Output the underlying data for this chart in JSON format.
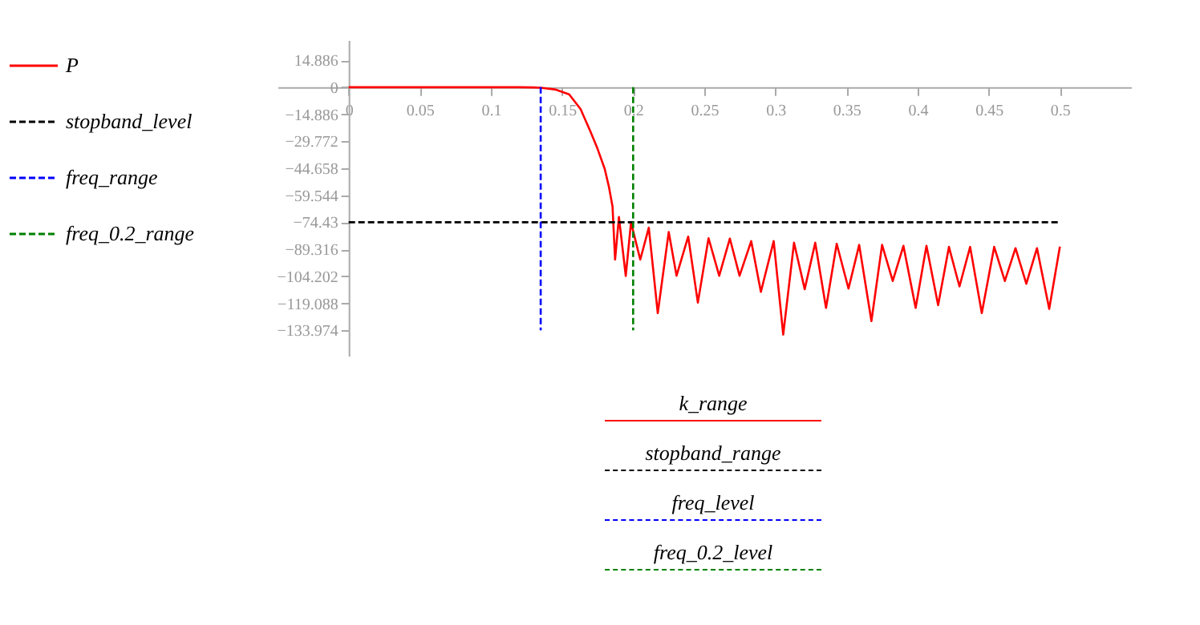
{
  "chart_data": {
    "type": "line",
    "xlim": [
      -0.05,
      0.55
    ],
    "ylim": [
      -148,
      26
    ],
    "xticks": [
      0,
      0.05,
      0.1,
      0.15,
      0.2,
      0.25,
      0.3,
      0.35,
      0.4,
      0.45,
      0.5
    ],
    "yticks": [
      14.886,
      0,
      {
        "value": -14.886,
        "label": "−14.886"
      },
      {
        "value": -29.772,
        "label": "−29.772"
      },
      {
        "value": -44.658,
        "label": "−44.658"
      },
      {
        "value": -59.544,
        "label": "−59.544"
      },
      {
        "value": -74.43,
        "label": "−74.43"
      },
      {
        "value": -89.316,
        "label": "−89.316"
      },
      {
        "value": -104.202,
        "label": "−104.202"
      },
      {
        "value": -119.088,
        "label": "−119.088"
      },
      {
        "value": -133.974,
        "label": "−133.974"
      }
    ],
    "grid": false,
    "legend": "left",
    "marker": "none",
    "series": [
      {
        "name": "P",
        "color": "#ff0000",
        "line_style": "solid",
        "x": [
          0,
          0.05,
          0.1,
          0.12,
          0.13,
          0.135,
          0.145,
          0.155,
          0.163,
          0.17,
          0.175,
          0.18,
          0.183,
          0.1855,
          0.1873,
          0.19,
          0.1948,
          0.1985,
          0.205,
          0.211,
          0.2173,
          0.225,
          0.2305,
          0.2387,
          0.2455,
          0.253,
          0.2605,
          0.268,
          0.2748,
          0.283,
          0.2898,
          0.2988,
          0.3055,
          0.3131,
          0.3206,
          0.328,
          0.3356,
          0.3431,
          0.3514,
          0.3589,
          0.3675,
          0.375,
          0.3825,
          0.39,
          0.3986,
          0.4062,
          0.4144,
          0.422,
          0.4294,
          0.4369,
          0.4451,
          0.4538,
          0.4613,
          0.4688,
          0.4764,
          0.4839,
          0.4925,
          0.5
        ],
        "values": [
          0,
          0,
          0,
          0,
          -0.1,
          -0.3,
          -1.2,
          -3.9,
          -12,
          -24.5,
          -34,
          -45,
          -55,
          -65.7,
          -95,
          -71.5,
          -104,
          -74.5,
          -95,
          -77.4,
          -124.5,
          -79.8,
          -103.9,
          -82.3,
          -118.7,
          -83.2,
          -103.9,
          -83.4,
          -103.9,
          -84.8,
          -112.8,
          -84.8,
          -136.3,
          -85.7,
          -111.3,
          -85.7,
          -121.6,
          -86.3,
          -111,
          -86.9,
          -128.9,
          -86.9,
          -106.8,
          -87.4,
          -121.6,
          -87.4,
          -120.1,
          -88,
          -109.8,
          -88,
          -124.5,
          -88,
          -106.8,
          -88.7,
          -108.3,
          -88.7,
          -122.2,
          -87.8
        ]
      },
      {
        "name": "stopband_level",
        "color": "#000000",
        "line_style": "dashed",
        "x": [
          0,
          0.5
        ],
        "values": [
          -74.43,
          -74.43
        ]
      },
      {
        "name": "freq_range",
        "color": "#0000ff",
        "line_style": "dashed",
        "x": [
          0.135,
          0.135
        ],
        "values": [
          0,
          -133.974
        ]
      },
      {
        "name": "freq_0.2_range",
        "color": "#008000",
        "line_style": "dashed",
        "x": [
          0.2,
          0.2
        ],
        "values": [
          0,
          -133.974
        ]
      }
    ],
    "annotations": [
      "k_range",
      "stopband_range",
      "freq_level",
      "freq_0.2_level"
    ]
  }
}
